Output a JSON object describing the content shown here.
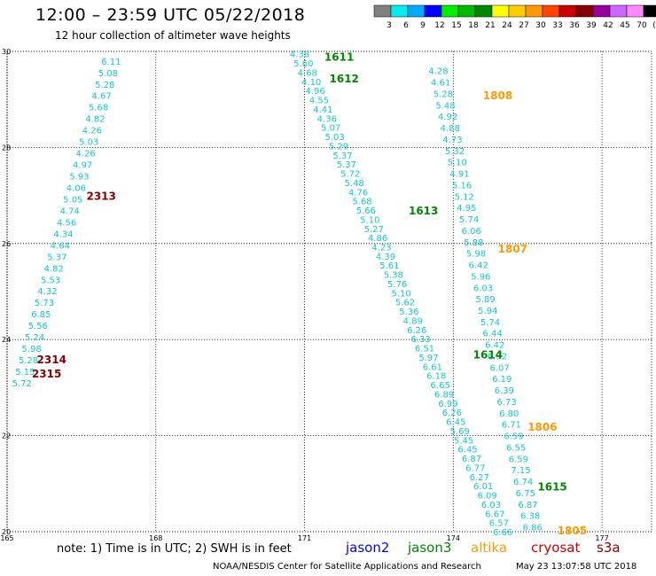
{
  "title": "12:00 – 23:59 UTC 05/22/2018",
  "subtitle": "12 hour collection of altimeter wave heights",
  "legend": {
    "labels": [
      "3",
      "6",
      "9",
      "12",
      "15",
      "18",
      "21",
      "24",
      "27",
      "30",
      "33",
      "36",
      "39",
      "42",
      "45",
      "70",
      "(ft)"
    ],
    "colors": [
      "#808080",
      "#00eeee",
      "#00aaff",
      "#0000ff",
      "#00ee00",
      "#00bb00",
      "#008800",
      "#ffff00",
      "#ffcc00",
      "#ff9900",
      "#ff4400",
      "#cc0000",
      "#880000",
      "#990099",
      "#cc66ff",
      "#ff88ff",
      "#000000"
    ]
  },
  "map": {
    "lon_range": [
      165,
      178
    ],
    "lat_range": [
      20,
      30
    ],
    "lon_ticks": [
      "165",
      "168",
      "171",
      "174",
      "177"
    ],
    "lat_ticks": [
      "20",
      "22",
      "24",
      "26",
      "28",
      "30"
    ],
    "grid": "dotted"
  },
  "passes": [
    {
      "label": "2313",
      "color": "#880000",
      "lon": 166.6,
      "lat": 27.0
    },
    {
      "label": "2314",
      "color": "#880000",
      "lon": 165.6,
      "lat": 23.6
    },
    {
      "label": "2315",
      "color": "#880000",
      "lon": 165.5,
      "lat": 23.3
    },
    {
      "label": "1611",
      "color": "#008800",
      "lon": 171.4,
      "lat": 29.9
    },
    {
      "label": "1612",
      "color": "#008800",
      "lon": 171.5,
      "lat": 29.45
    },
    {
      "label": "1613",
      "color": "#008800",
      "lon": 173.1,
      "lat": 26.7
    },
    {
      "label": "1614",
      "color": "#008800",
      "lon": 174.4,
      "lat": 23.7
    },
    {
      "label": "1615",
      "color": "#008800",
      "lon": 175.7,
      "lat": 20.95
    },
    {
      "label": "1808",
      "color": "#ff9900",
      "lon": 174.6,
      "lat": 29.1
    },
    {
      "label": "1807",
      "color": "#ff9900",
      "lon": 174.9,
      "lat": 25.9
    },
    {
      "label": "1806",
      "color": "#ff9900",
      "lon": 175.5,
      "lat": 22.2
    },
    {
      "label": "1805",
      "color": "#ff9900",
      "lon": 176.1,
      "lat": 20.0
    }
  ],
  "tracks": [
    {
      "name": "track-2313",
      "values": [
        "6.11",
        "5.08",
        "5.28",
        "4.67",
        "5.68",
        "4.82",
        "4.26",
        "5.03",
        "4.26",
        "4.97",
        "5.93",
        "4.06",
        "5.05",
        "4.74",
        "4.56",
        "4.34",
        "4.64",
        "5.37",
        "4.82",
        "5.53",
        "4.32",
        "5.73",
        "6.85",
        "5.56",
        "5.24",
        "5.98",
        "5.28",
        "5.15",
        "5.72"
      ],
      "start": [
        167.1,
        29.8
      ],
      "end": [
        165.3,
        23.1
      ]
    },
    {
      "name": "track-1611",
      "values": [
        "4.38",
        "5.60",
        "4.68",
        "4.10",
        "4.96",
        "4.55",
        "4.41",
        "4.36",
        "5.07",
        "5.03",
        "5.29",
        "5.37",
        "5.37",
        "5.72",
        "5.48",
        "4.76",
        "5.68",
        "5.66",
        "5.10",
        "5.27",
        "4.86",
        "4.23",
        "4.39",
        "5.61",
        "5.38",
        "5.76",
        "5.10",
        "5.62",
        "5.36",
        "4.89",
        "6.26",
        "6.33",
        "6.51",
        "5.97",
        "6.61",
        "6.18",
        "6.65",
        "6.89",
        "6.99",
        "6.26",
        "6.45",
        "5.69",
        "5.45",
        "6.45",
        "6.87",
        "6.77",
        "6.27",
        "6.01",
        "6.09",
        "6.03",
        "6.67",
        "6.57",
        "6.66"
      ],
      "start": [
        170.9,
        29.95
      ],
      "end": [
        175.0,
        20.0
      ]
    },
    {
      "name": "track-1808",
      "values": [
        "4.28",
        "4.61",
        "5.28",
        "5.48",
        "4.92",
        "4.88",
        "4.73",
        "5.32",
        "5.10",
        "4.91",
        "5.16",
        "5.12",
        "4.95",
        "5.74",
        "6.06",
        "5.88",
        "5.98",
        "6.42",
        "5.96",
        "6.03",
        "5.89",
        "5.94",
        "5.74",
        "6.44",
        "6.42",
        "6.32",
        "6.07",
        "6.19",
        "6.39",
        "6.73",
        "6.80",
        "6.71",
        "6.59",
        "6.55",
        "6.59",
        "7.15",
        "6.74",
        "6.75",
        "6.87",
        "6.38",
        "6.86"
      ],
      "start": [
        173.7,
        29.6
      ],
      "end": [
        175.6,
        20.1
      ]
    }
  ],
  "footer": {
    "note": "note:  1) Time is in UTC;  2) SWH is in feet",
    "satellites": [
      "jason2",
      "jason3",
      "altika",
      "cryosat",
      "s3a"
    ],
    "credit": "NOAA/NESDIS Center for Satellite Applications and Research",
    "timestamp": "May 23 13:07:58 UTC 2018"
  }
}
